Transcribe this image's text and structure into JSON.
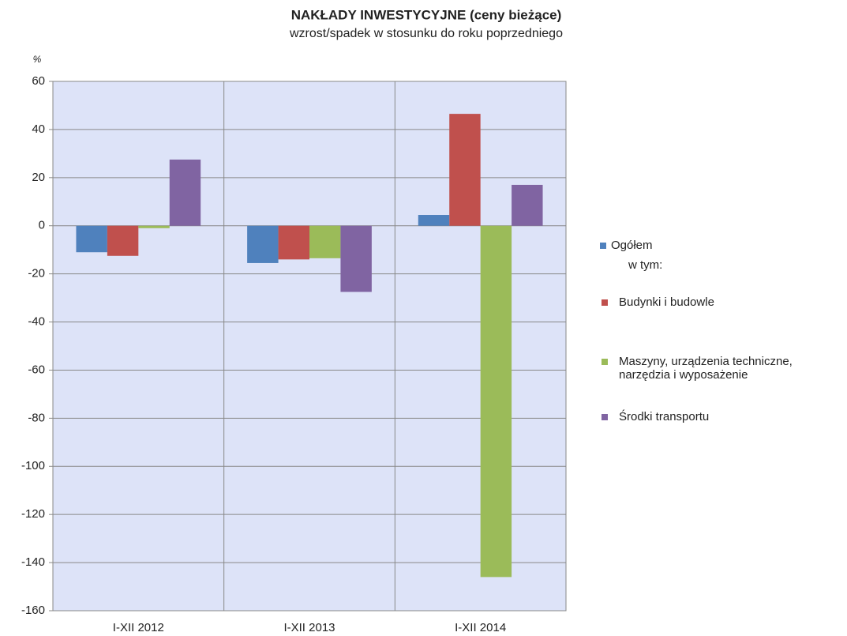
{
  "chart_data": {
    "type": "bar",
    "title": "NAKŁADY INWESTYCYJNE (ceny bieżące)",
    "subtitle": "wzrost/spadek w stosunku do roku poprzedniego",
    "y_label": "%",
    "legend_note": "w tym:",
    "categories": [
      "I-XII 2012",
      "I-XII 2013",
      "I-XII 2014"
    ],
    "series": [
      {
        "name": "Ogółem",
        "color": "#4f81bd",
        "values": [
          -11,
          -15.5,
          4.5
        ]
      },
      {
        "name": "Budynki i budowle",
        "color": "#c0504d",
        "values": [
          -12.5,
          -14,
          46.5
        ]
      },
      {
        "name": "Maszyny, urządzenia techniczne, narzędzia i wyposażenie",
        "color": "#9bbb59",
        "values": [
          -1,
          -13.5,
          -146
        ]
      },
      {
        "name": "Środki transportu",
        "color": "#8064a2",
        "values": [
          27.5,
          -27.5,
          17
        ]
      }
    ],
    "ylim": [
      -160,
      60
    ],
    "yticks": [
      -160,
      -140,
      -120,
      -100,
      -80,
      -60,
      -40,
      -20,
      0,
      20,
      40,
      60
    ],
    "grid": true
  }
}
